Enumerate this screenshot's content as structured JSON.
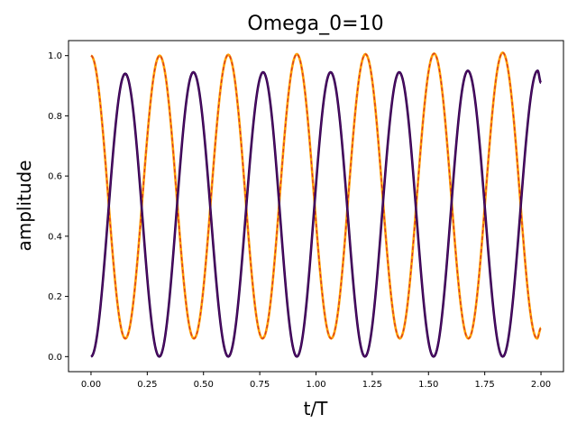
{
  "chart_data": {
    "type": "line",
    "title": "Omega_0=10",
    "xlabel": "t/T",
    "ylabel": "amplitude",
    "xlim": [
      -0.1,
      2.1
    ],
    "ylim": [
      -0.05,
      1.05
    ],
    "xticks": [
      "0.00",
      "0.25",
      "0.50",
      "0.75",
      "1.00",
      "1.25",
      "1.50",
      "1.75",
      "2.00"
    ],
    "yticks": [
      "0.0",
      "0.2",
      "0.4",
      "0.6",
      "0.8",
      "1.0"
    ],
    "grid": false,
    "legend": "none",
    "x_range": [
      0,
      2
    ],
    "series": [
      {
        "color": "#2d004b",
        "style": "solid",
        "peaks": [
          {
            "t": 0.152,
            "value": 0.94
          },
          {
            "t": 0.455,
            "value": 0.945
          },
          {
            "t": 0.765,
            "value": 0.945
          },
          {
            "t": 1.065,
            "value": 0.945
          },
          {
            "t": 1.37,
            "value": 0.945
          },
          {
            "t": 1.675,
            "value": 0.95
          },
          {
            "t": 1.985,
            "value": 0.95
          }
        ],
        "start_value": 0.0,
        "min_value": 0.0,
        "end_value": 0.91
      },
      {
        "color": "#ff9e00",
        "style": "solid",
        "start_value": 1.0,
        "end_value": 0.095,
        "min_value": 0.06,
        "peaks": [
          {
            "t": 0.305,
            "value": 1.0
          },
          {
            "t": 0.61,
            "value": 1.003
          },
          {
            "t": 0.915,
            "value": 1.005
          },
          {
            "t": 1.22,
            "value": 1.005
          },
          {
            "t": 1.525,
            "value": 1.007
          },
          {
            "t": 1.83,
            "value": 1.01
          }
        ]
      },
      {
        "color": "#d42d2d",
        "style": "dashed",
        "overlay_of": "orange"
      },
      {
        "color": "#5a0f6e",
        "style": "thin",
        "overlay_of": "purple"
      }
    ]
  }
}
